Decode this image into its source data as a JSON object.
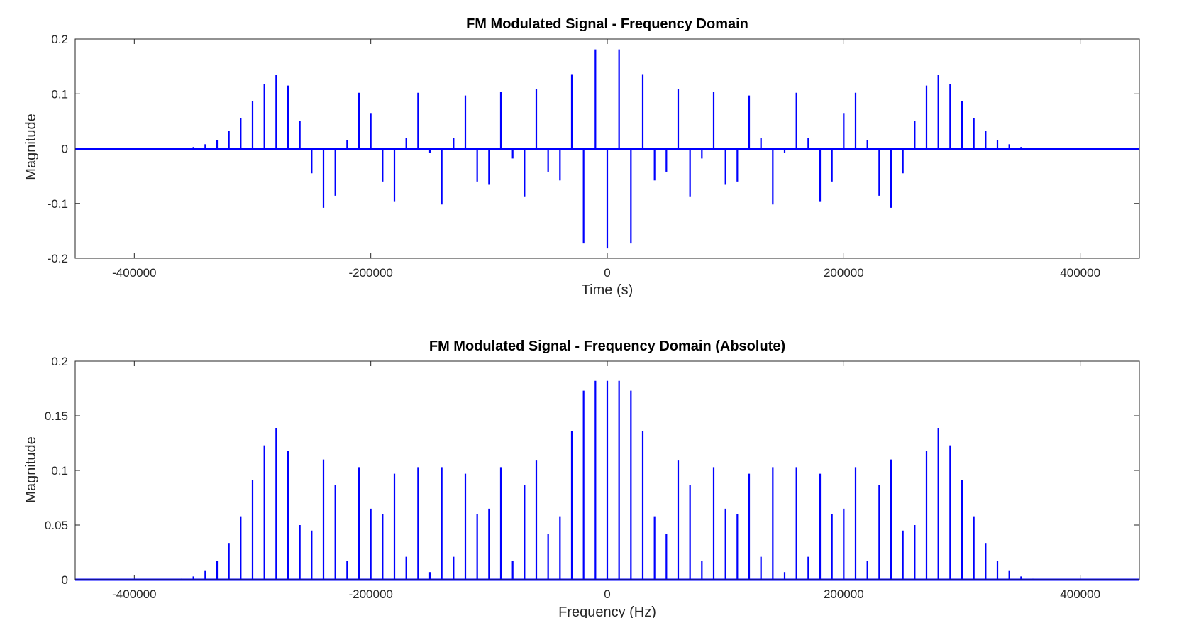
{
  "chart_data": [
    {
      "type": "stem",
      "title": "FM Modulated Signal - Frequency Domain",
      "xlabel": "Time (s)",
      "ylabel": "Magnitude",
      "xlim": [
        -450000,
        450000
      ],
      "ylim": [
        -0.2,
        0.2
      ],
      "xticks": [
        -400000,
        -200000,
        0,
        200000,
        400000
      ],
      "xtick_labels": [
        "-400000",
        "-200000",
        "0",
        "200000",
        "400000"
      ],
      "yticks": [
        0.2,
        0.1,
        0,
        -0.1,
        -0.2
      ],
      "ytick_labels": [
        "0.2",
        "0.1",
        "0",
        "-0.1",
        "-0.2"
      ],
      "grid": false,
      "series_color": "#0000ff",
      "x": [
        -360000,
        -350000,
        -340000,
        -330000,
        -320000,
        -310000,
        -300000,
        -290000,
        -280000,
        -270000,
        -260000,
        -250000,
        -240000,
        -230000,
        -220000,
        -210000,
        -200000,
        -190000,
        -180000,
        -170000,
        -160000,
        -150000,
        -140000,
        -130000,
        -120000,
        -110000,
        -100000,
        -90000,
        -80000,
        -70000,
        -60000,
        -50000,
        -40000,
        -30000,
        -20000,
        -10000,
        0,
        10000,
        20000,
        30000,
        40000,
        50000,
        60000,
        70000,
        80000,
        90000,
        100000,
        110000,
        120000,
        130000,
        140000,
        150000,
        160000,
        170000,
        180000,
        190000,
        200000,
        210000,
        220000,
        230000,
        240000,
        250000,
        260000,
        270000,
        280000,
        290000,
        300000,
        310000,
        320000,
        330000,
        340000,
        350000,
        360000
      ],
      "y": [
        0.001,
        0.003,
        0.008,
        0.016,
        0.032,
        0.056,
        0.087,
        0.118,
        0.135,
        0.115,
        0.05,
        -0.045,
        -0.108,
        -0.086,
        0.016,
        0.102,
        0.065,
        -0.06,
        -0.096,
        0.02,
        0.102,
        -0.008,
        -0.102,
        0.02,
        0.097,
        -0.06,
        -0.066,
        0.103,
        -0.018,
        -0.087,
        0.109,
        -0.042,
        -0.058,
        0.136,
        -0.173,
        0.181,
        -0.182,
        0.181,
        -0.173,
        0.136,
        -0.058,
        -0.042,
        0.109,
        -0.087,
        -0.018,
        0.103,
        -0.066,
        -0.06,
        0.097,
        0.02,
        -0.102,
        -0.008,
        0.102,
        0.02,
        -0.096,
        -0.06,
        0.065,
        0.102,
        0.016,
        -0.086,
        -0.108,
        -0.045,
        0.05,
        0.115,
        0.135,
        0.118,
        0.087,
        0.056,
        0.032,
        0.016,
        0.008,
        0.003,
        0.001
      ]
    },
    {
      "type": "stem",
      "title": "FM Modulated Signal - Frequency Domain (Absolute)",
      "xlabel": "Frequency (Hz)",
      "ylabel": "Magnitude",
      "xlim": [
        -450000,
        450000
      ],
      "ylim": [
        0,
        0.2
      ],
      "xticks": [
        -400000,
        -200000,
        0,
        200000,
        400000
      ],
      "xtick_labels": [
        "-400000",
        "-200000",
        "0",
        "200000",
        "400000"
      ],
      "yticks": [
        0.2,
        0.15,
        0.1,
        0.05,
        0
      ],
      "ytick_labels": [
        "0.2",
        "0.15",
        "0.1",
        "0.05",
        "0"
      ],
      "grid": false,
      "series_color": "#0000ff",
      "x": [
        -360000,
        -350000,
        -340000,
        -330000,
        -320000,
        -310000,
        -300000,
        -290000,
        -280000,
        -270000,
        -260000,
        -250000,
        -240000,
        -230000,
        -220000,
        -210000,
        -200000,
        -190000,
        -180000,
        -170000,
        -160000,
        -150000,
        -140000,
        -130000,
        -120000,
        -110000,
        -100000,
        -90000,
        -80000,
        -70000,
        -60000,
        -50000,
        -40000,
        -30000,
        -20000,
        -10000,
        0,
        10000,
        20000,
        30000,
        40000,
        50000,
        60000,
        70000,
        80000,
        90000,
        100000,
        110000,
        120000,
        130000,
        140000,
        150000,
        160000,
        170000,
        180000,
        190000,
        200000,
        210000,
        220000,
        230000,
        240000,
        250000,
        260000,
        270000,
        280000,
        290000,
        300000,
        310000,
        320000,
        330000,
        340000,
        350000,
        360000
      ],
      "y": [
        0.001,
        0.003,
        0.008,
        0.017,
        0.033,
        0.058,
        0.091,
        0.123,
        0.139,
        0.118,
        0.05,
        0.045,
        0.11,
        0.087,
        0.017,
        0.103,
        0.065,
        0.06,
        0.097,
        0.021,
        0.103,
        0.007,
        0.103,
        0.021,
        0.097,
        0.06,
        0.065,
        0.103,
        0.017,
        0.087,
        0.109,
        0.042,
        0.058,
        0.136,
        0.173,
        0.182,
        0.182,
        0.182,
        0.173,
        0.136,
        0.058,
        0.042,
        0.109,
        0.087,
        0.017,
        0.103,
        0.065,
        0.06,
        0.097,
        0.021,
        0.103,
        0.007,
        0.103,
        0.021,
        0.097,
        0.06,
        0.065,
        0.103,
        0.017,
        0.087,
        0.11,
        0.045,
        0.05,
        0.118,
        0.139,
        0.123,
        0.091,
        0.058,
        0.033,
        0.017,
        0.008,
        0.003,
        0.001
      ]
    }
  ]
}
